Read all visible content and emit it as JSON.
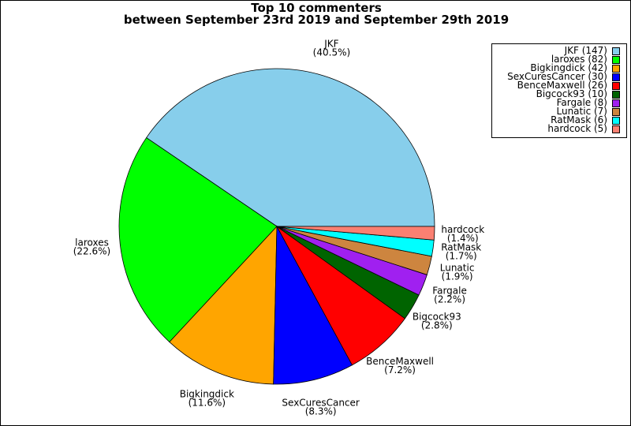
{
  "chart_data": {
    "type": "pie",
    "title": [
      "Top 10 commenters",
      "between September 23rd 2019 and September 29th 2019"
    ],
    "legend_position": "top-right",
    "slices": [
      {
        "name": "JKF",
        "value": 147,
        "percent": "40.5%",
        "legend": "JKF (147)",
        "color": "#87ceeb"
      },
      {
        "name": "laroxes",
        "value": 82,
        "percent": "22.6%",
        "legend": "laroxes (82)",
        "color": "#00ff00"
      },
      {
        "name": "Bigkingdick",
        "value": 42,
        "percent": "11.6%",
        "legend": "Bigkingdick (42)",
        "color": "#ffa500"
      },
      {
        "name": "SexCuresCancer",
        "value": 30,
        "percent": "8.3%",
        "legend": "SexCuresCancer (30)",
        "color": "#0000ff"
      },
      {
        "name": "BenceMaxwell",
        "value": 26,
        "percent": "7.2%",
        "legend": "BenceMaxwell (26)",
        "color": "#ff0000"
      },
      {
        "name": "Bigcock93",
        "value": 10,
        "percent": "2.8%",
        "legend": "Bigcock93 (10)",
        "color": "#006400"
      },
      {
        "name": "Fargale",
        "value": 8,
        "percent": "2.2%",
        "legend": "Fargale (8)",
        "color": "#a020f0"
      },
      {
        "name": "Lunatic",
        "value": 7,
        "percent": "1.9%",
        "legend": "Lunatic (7)",
        "color": "#cd853f"
      },
      {
        "name": "RatMask",
        "value": 6,
        "percent": "1.7%",
        "legend": "RatMask (6)",
        "color": "#00ffff"
      },
      {
        "name": "hardcock",
        "value": 5,
        "percent": "1.4%",
        "legend": "hardcock (5)",
        "color": "#fa8072"
      }
    ]
  }
}
